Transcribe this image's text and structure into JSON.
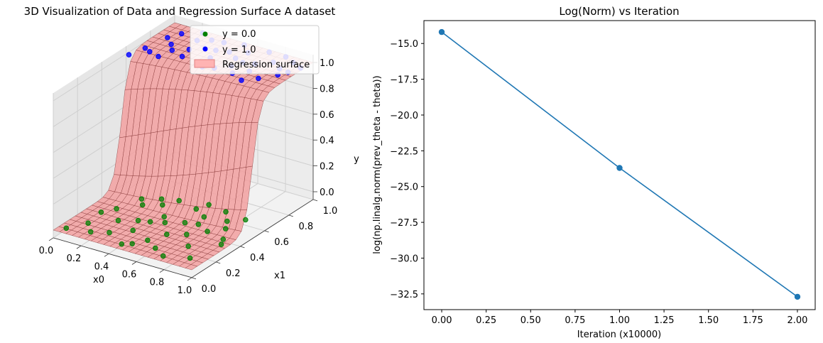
{
  "chart_data": [
    {
      "type": "surface3d",
      "title": "3D Visualization of Data and Regression Surface A dataset",
      "xlabel": "x0",
      "ylabel": "x1",
      "zlabel": "y",
      "xlim": [
        0,
        1
      ],
      "ylim": [
        0,
        1
      ],
      "zlim": [
        0,
        1
      ],
      "xticks": [
        "0.0",
        "0.2",
        "0.4",
        "0.6",
        "0.8",
        "1.0"
      ],
      "yticks": [
        "0.0",
        "0.2",
        "0.4",
        "0.6",
        "0.8",
        "1.0"
      ],
      "zticks": [
        "0.0",
        "0.2",
        "0.4",
        "0.6",
        "0.8",
        "1.0"
      ],
      "legend": {
        "position": "top-right",
        "entries": [
          "y = 0.0",
          "y = 1.0",
          "Regression surface"
        ]
      },
      "colors": {
        "class0": "#008000",
        "class1": "#0000ff",
        "surface": "#ff9999",
        "surface_edge": "#7a2a2a"
      },
      "series": [
        {
          "name": "y = 0.0",
          "points": [
            [
              0.05,
              0.05,
              0
            ],
            [
              0.12,
              0.15,
              0
            ],
            [
              0.2,
              0.08,
              0
            ],
            [
              0.25,
              0.25,
              0
            ],
            [
              0.3,
              0.12,
              0
            ],
            [
              0.35,
              0.3,
              0
            ],
            [
              0.4,
              0.2,
              0
            ],
            [
              0.45,
              0.05,
              0
            ],
            [
              0.5,
              0.35,
              0
            ],
            [
              0.55,
              0.15,
              0
            ],
            [
              0.6,
              0.4,
              0
            ],
            [
              0.65,
              0.1,
              0
            ],
            [
              0.7,
              0.3,
              0
            ],
            [
              0.75,
              0.05,
              0
            ],
            [
              0.8,
              0.2,
              0
            ],
            [
              0.85,
              0.45,
              0
            ],
            [
              0.9,
              0.1,
              0
            ],
            [
              0.95,
              0.3,
              0
            ],
            [
              0.15,
              0.35,
              0
            ],
            [
              0.25,
              0.45,
              0
            ],
            [
              0.35,
              0.5,
              0
            ],
            [
              0.45,
              0.4,
              0
            ],
            [
              0.55,
              0.55,
              0
            ],
            [
              0.65,
              0.5,
              0
            ],
            [
              0.72,
              0.6,
              0
            ],
            [
              0.8,
              0.52,
              0
            ],
            [
              0.88,
              0.58,
              0
            ],
            [
              0.4,
              0.58,
              0
            ],
            [
              0.3,
              0.55,
              0
            ],
            [
              0.2,
              0.5,
              0
            ],
            [
              0.6,
              0.25,
              0
            ],
            [
              0.5,
              0.08,
              0
            ],
            [
              0.1,
              0.28,
              0
            ],
            [
              0.92,
              0.35,
              0
            ],
            [
              0.68,
              0.42,
              0
            ],
            [
              0.78,
              0.38,
              0
            ],
            [
              0.42,
              0.32,
              0
            ],
            [
              0.58,
              0.62,
              0
            ]
          ],
          "color": "#008000"
        },
        {
          "name": "y = 1.0",
          "points": [
            [
              0.02,
              0.6,
              1
            ],
            [
              0.05,
              0.7,
              1
            ],
            [
              0.1,
              0.68,
              1
            ],
            [
              0.15,
              0.8,
              1
            ],
            [
              0.2,
              0.75,
              1
            ],
            [
              0.25,
              0.9,
              1
            ],
            [
              0.3,
              0.72,
              1
            ],
            [
              0.35,
              0.85,
              1
            ],
            [
              0.4,
              0.95,
              1
            ],
            [
              0.45,
              0.78,
              1
            ],
            [
              0.5,
              0.88,
              1
            ],
            [
              0.55,
              0.7,
              1
            ],
            [
              0.6,
              0.92,
              1
            ],
            [
              0.65,
              0.82,
              1
            ],
            [
              0.7,
              0.98,
              1
            ],
            [
              0.75,
              0.76,
              1
            ],
            [
              0.8,
              0.9,
              1
            ],
            [
              0.85,
              0.72,
              1
            ],
            [
              0.9,
              0.95,
              1
            ],
            [
              0.95,
              0.85,
              1
            ],
            [
              0.98,
              0.92,
              1
            ],
            [
              0.12,
              0.92,
              1
            ],
            [
              0.22,
              0.98,
              1
            ],
            [
              0.32,
              0.94,
              1
            ],
            [
              0.42,
              0.86,
              1
            ],
            [
              0.52,
              0.98,
              1
            ],
            [
              0.62,
              0.76,
              1
            ],
            [
              0.72,
              0.84,
              1
            ],
            [
              0.82,
              0.98,
              1
            ],
            [
              0.92,
              0.8,
              1
            ],
            [
              0.08,
              0.85,
              1
            ],
            [
              0.18,
              0.66,
              1
            ],
            [
              0.28,
              0.8,
              1
            ],
            [
              0.48,
              0.68,
              1
            ],
            [
              0.58,
              0.84,
              1
            ],
            [
              0.68,
              0.7,
              1
            ],
            [
              0.78,
              0.66,
              1
            ],
            [
              0.88,
              0.86,
              1
            ]
          ],
          "color": "#0000ff"
        }
      ]
    },
    {
      "type": "line",
      "title": "Log(Norm) vs Iteration",
      "xlabel": "Iteration (x10000)",
      "ylabel": "log(np.linalg.norm(prev_theta - theta))",
      "xlim": [
        -0.1,
        2.1
      ],
      "ylim": [
        -33.6,
        -13.4
      ],
      "xticks": [
        0,
        0.25,
        0.5,
        0.75,
        1.0,
        1.25,
        1.5,
        1.75,
        2.0
      ],
      "xtick_labels": [
        "0.00",
        "0.25",
        "0.50",
        "0.75",
        "1.00",
        "1.25",
        "1.50",
        "1.75",
        "2.00"
      ],
      "yticks": [
        -15,
        -17.5,
        -20,
        -22.5,
        -25,
        -27.5,
        -30,
        -32.5
      ],
      "ytick_labels": [
        "−15.0",
        "−17.5",
        "−20.0",
        "−22.5",
        "−25.0",
        "−27.5",
        "−30.0",
        "−32.5"
      ],
      "x": [
        0,
        1,
        2
      ],
      "y": [
        -14.2,
        -23.7,
        -32.7
      ],
      "color": "#1f77b4"
    }
  ]
}
